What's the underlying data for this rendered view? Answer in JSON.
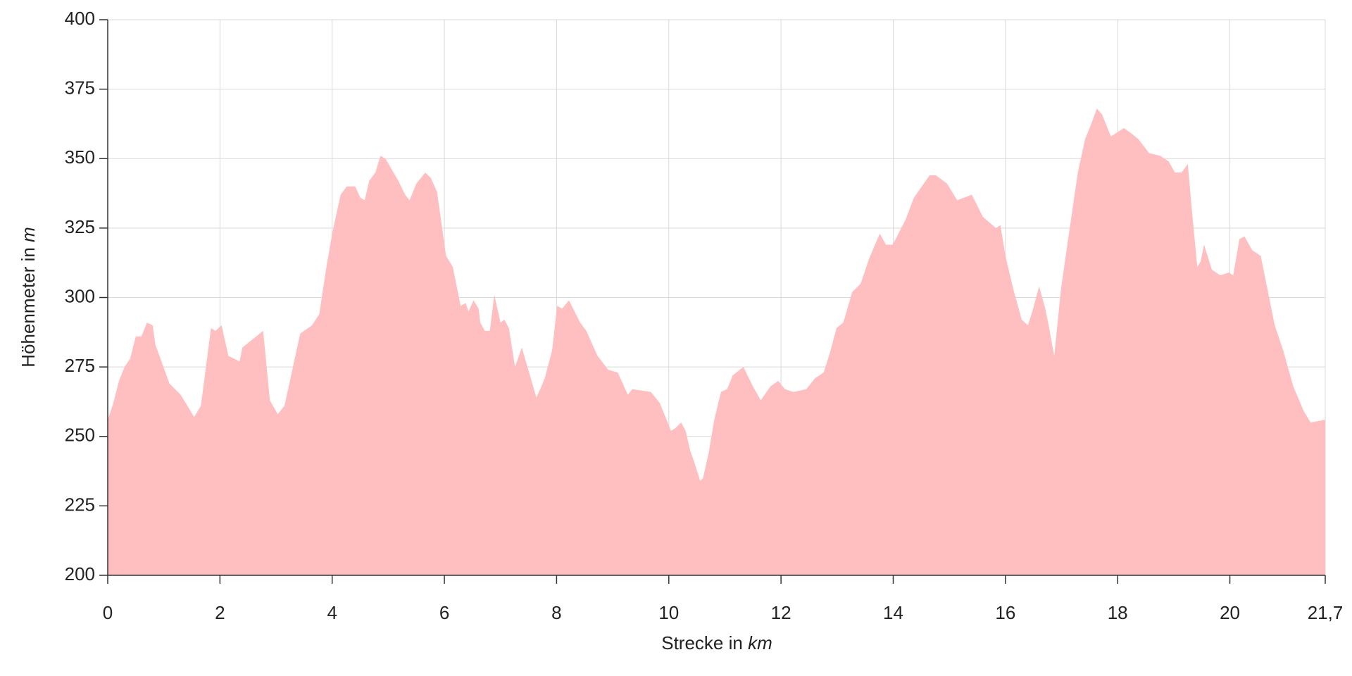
{
  "chart_data": {
    "type": "area",
    "x_label": "Strecke in",
    "x_label_unit": "km",
    "y_label": "Höhenmeter in",
    "y_label_unit": "m",
    "color": "#ffbfc0",
    "grid": true,
    "xlim": [
      0,
      21.7
    ],
    "ylim": [
      200,
      400
    ],
    "xticks": [
      0,
      2,
      4,
      6,
      8,
      10,
      12,
      14,
      16,
      18,
      20,
      {
        "value": 21.7,
        "label": "21,7"
      }
    ],
    "yticks": [
      200,
      225,
      250,
      275,
      300,
      325,
      350,
      375,
      400
    ],
    "x": [
      0,
      0.1,
      0.2,
      0.3,
      0.4,
      0.5,
      0.6,
      0.7,
      0.8,
      0.85,
      1.1,
      1.3,
      1.54,
      1.66,
      1.77,
      1.84,
      1.92,
      2.03,
      2.15,
      2.35,
      2.4,
      2.77,
      2.89,
      3.03,
      3.15,
      3.43,
      3.64,
      3.77,
      3.89,
      4.0,
      4.15,
      4.26,
      4.41,
      4.5,
      4.58,
      4.66,
      4.77,
      4.86,
      4.95,
      5.18,
      5.3,
      5.38,
      5.5,
      5.66,
      5.76,
      5.87,
      6.03,
      6.15,
      6.29,
      6.38,
      6.43,
      6.52,
      6.61,
      6.64,
      6.72,
      6.81,
      6.89,
      7.0,
      7.07,
      7.15,
      7.26,
      7.38,
      7.64,
      7.73,
      7.79,
      7.92,
      8.01,
      8.1,
      8.22,
      8.42,
      8.53,
      8.73,
      8.92,
      9.09,
      9.27,
      9.35,
      9.68,
      9.84,
      10.04,
      10.12,
      10.22,
      10.3,
      10.38,
      10.45,
      10.56,
      10.61,
      10.71,
      10.81,
      10.93,
      11.04,
      11.14,
      11.33,
      11.5,
      11.64,
      11.81,
      11.95,
      12.07,
      12.22,
      12.45,
      12.61,
      12.76,
      12.87,
      12.99,
      13.11,
      13.27,
      13.42,
      13.57,
      13.76,
      13.87,
      13.99,
      14.22,
      14.37,
      14.65,
      14.76,
      14.96,
      15.14,
      15.4,
      15.6,
      15.83,
      15.91,
      16.0,
      16.14,
      16.29,
      16.4,
      16.48,
      16.6,
      16.71,
      16.77,
      16.87,
      16.99,
      17.11,
      17.29,
      17.42,
      17.52,
      17.63,
      17.72,
      17.88,
      18.11,
      18.25,
      18.37,
      18.56,
      18.76,
      18.91,
      19.02,
      19.14,
      19.25,
      19.33,
      19.42,
      19.48,
      19.54,
      19.68,
      19.83,
      19.98,
      20.06,
      20.17,
      20.26,
      20.4,
      20.55,
      20.8,
      20.95,
      21.13,
      21.32,
      21.44,
      21.7
    ],
    "values": [
      256,
      262,
      270,
      275,
      278,
      286,
      286,
      291,
      290,
      283,
      269,
      265,
      257,
      261,
      278,
      289,
      288,
      290,
      279,
      277,
      282,
      288,
      263,
      258,
      261,
      287,
      290,
      294,
      310,
      323,
      337,
      340,
      340,
      336,
      335,
      342,
      345,
      351,
      350,
      342,
      337,
      335,
      341,
      345,
      343,
      338,
      315,
      311,
      297,
      298,
      295,
      299,
      296,
      291,
      288,
      288,
      301,
      291,
      292,
      289,
      275,
      282,
      264,
      268,
      271,
      281,
      297,
      296,
      299,
      291,
      288,
      279,
      274,
      273,
      265,
      267,
      266,
      262,
      252,
      253,
      255,
      252,
      245,
      241,
      234,
      235,
      244,
      256,
      266,
      267,
      272,
      275,
      268,
      263,
      268,
      270,
      267,
      266,
      267,
      271,
      273,
      280,
      289,
      291,
      302,
      305,
      314,
      323,
      319,
      319,
      328,
      336,
      344,
      344,
      341,
      335,
      337,
      329,
      325,
      326,
      315,
      303,
      292,
      290,
      295,
      304,
      296,
      290,
      279,
      303,
      320,
      345,
      357,
      362,
      368,
      366,
      358,
      361,
      359,
      357,
      352,
      351,
      349,
      345,
      345,
      348,
      330,
      311,
      313,
      319,
      310,
      308,
      309,
      308,
      321,
      322,
      317,
      315,
      290,
      281,
      268,
      259,
      255,
      256
    ]
  }
}
